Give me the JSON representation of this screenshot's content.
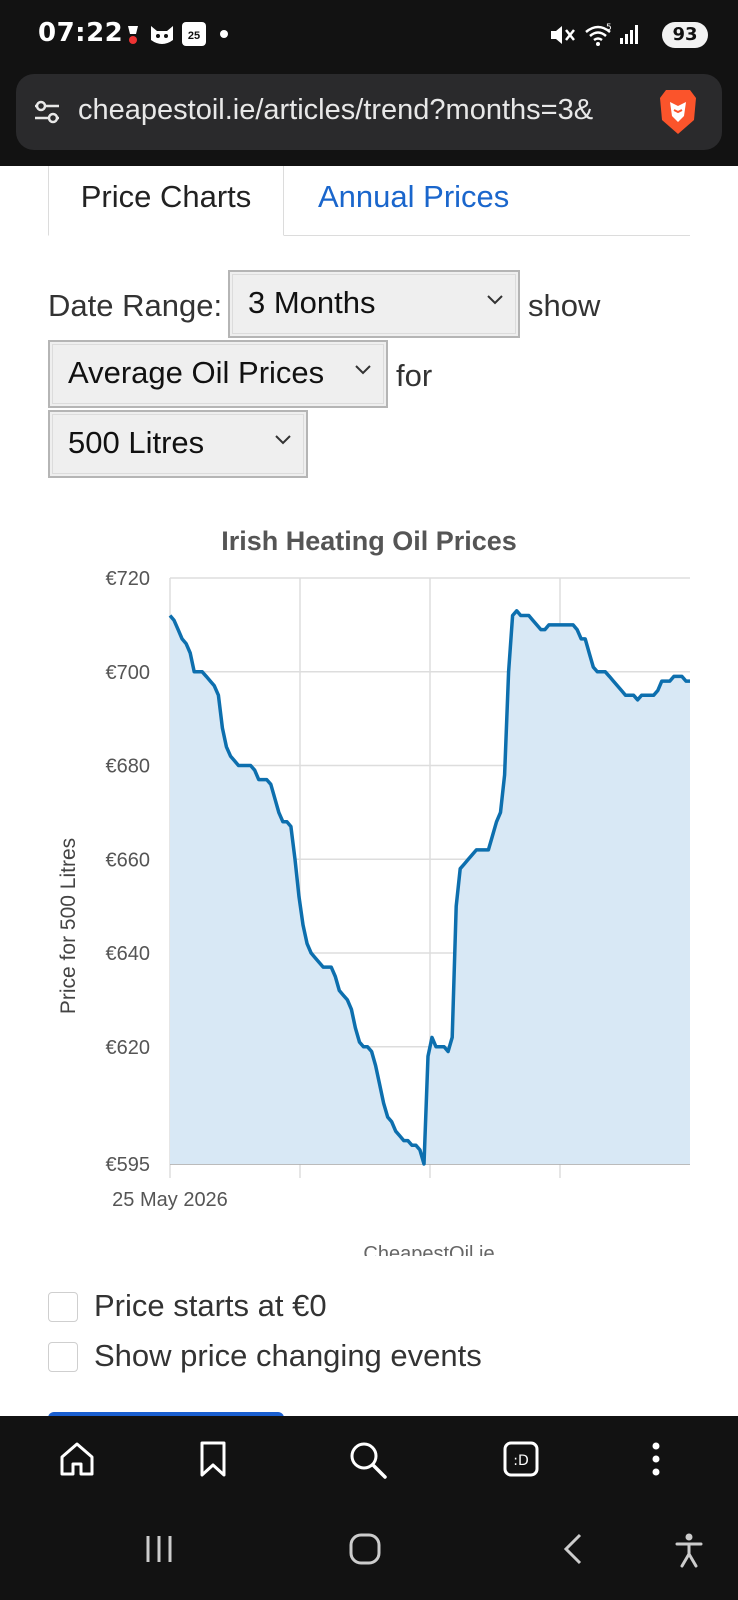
{
  "status_bar": {
    "time": "07:22",
    "battery": "93",
    "calendar_day": "25"
  },
  "browser": {
    "url": "cheapestoil.ie/articles/trend?months=3&"
  },
  "tabs": [
    {
      "label": "Price Charts",
      "active": true
    },
    {
      "label": "Annual Prices",
      "active": false
    }
  ],
  "form": {
    "date_range_label": "Date Range:",
    "date_range_value": "3 Months",
    "show_label": "show",
    "metric_value": "Average Oil Prices",
    "for_label": "for",
    "volume_value": "500 Litres"
  },
  "chart_data": {
    "type": "area",
    "title": "Irish Heating Oil Prices",
    "ylabel": "Price for 500 Litres",
    "xlabel": "",
    "source": "CheapestOil.ie",
    "x_tick_labels": [
      "25 May 2026"
    ],
    "y_ticks": [
      "€720",
      "€700",
      "€680",
      "€660",
      "€640",
      "€620",
      "€595"
    ],
    "ylim": [
      595,
      720
    ],
    "grid": true,
    "series": [
      {
        "values": [
          712,
          711,
          709,
          707,
          706,
          704,
          700,
          700,
          700,
          699,
          698,
          697,
          695,
          688,
          684,
          682,
          681,
          680,
          680,
          680,
          680,
          679,
          677,
          677,
          677,
          676,
          673,
          670,
          668,
          668,
          667,
          660,
          652,
          646,
          642,
          640,
          639,
          638,
          637,
          637,
          637,
          635,
          632,
          631,
          630,
          628,
          624,
          621,
          620,
          620,
          619,
          616,
          612,
          608,
          605,
          604,
          602,
          601,
          600,
          600,
          599,
          599,
          598,
          595,
          618,
          622,
          620,
          620,
          620,
          619,
          622,
          650,
          658,
          659,
          660,
          661,
          662,
          662,
          662,
          662,
          665,
          668,
          670,
          678,
          700,
          712,
          713,
          712,
          712,
          712,
          711,
          710,
          709,
          709,
          710,
          710,
          710,
          710,
          710,
          710,
          710,
          709,
          707,
          707,
          704,
          701,
          700,
          700,
          700,
          699,
          698,
          697,
          696,
          695,
          695,
          695,
          694,
          695,
          695,
          695,
          695,
          696,
          698,
          698,
          698,
          699,
          699,
          699,
          698,
          698
        ]
      }
    ]
  },
  "options": [
    {
      "label": "Price starts at €0",
      "checked": false
    },
    {
      "label": "Show price changing events",
      "checked": false
    }
  ],
  "colors": {
    "line": "#0d6fae",
    "fill": "#d8e8f5",
    "grid": "#dddddd",
    "link": "#1a66cc"
  }
}
